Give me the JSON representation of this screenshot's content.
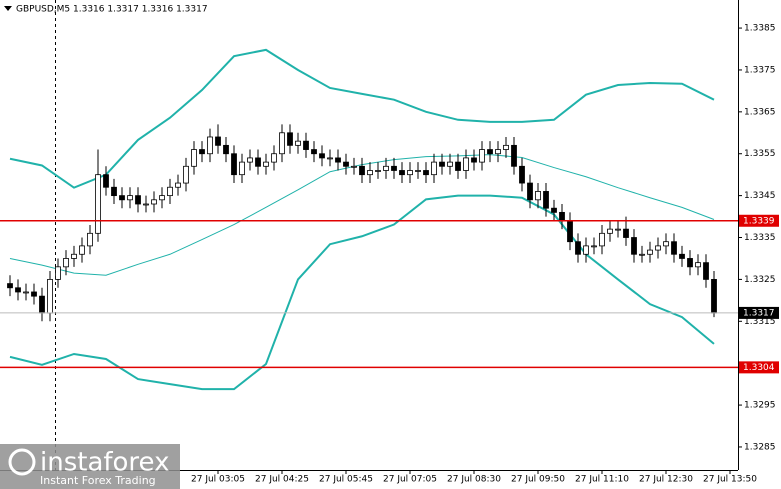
{
  "chart_data": {
    "type": "candlestick",
    "title": "GBPUSD,M5  1.3316 1.3317 1.3316 1.3317",
    "categories": [
      null,
      null,
      null,
      null,
      null,
      null,
      null,
      null,
      null,
      null,
      null,
      null,
      null,
      null,
      null,
      null,
      null,
      null,
      null,
      null,
      null,
      null,
      null,
      null,
      null,
      null,
      "27 Jul 03:05",
      null,
      null,
      null,
      null,
      null,
      null,
      null,
      "27 Jul 04:25",
      null,
      null,
      null,
      null,
      null,
      null,
      null,
      "27 Jul 05:45",
      null,
      null,
      null,
      null,
      null,
      null,
      null,
      "27 Jul 07:05",
      null,
      null,
      null,
      null,
      null,
      null,
      null,
      "27 Jul 08:30",
      null,
      null,
      null,
      null,
      null,
      null,
      null,
      "27 Jul 09:50",
      null,
      null,
      null,
      null,
      null,
      null,
      null,
      "27 Jul 11:10",
      null,
      null,
      null,
      null,
      null,
      null,
      null,
      "27 Jul 12:30",
      null,
      null,
      null,
      null,
      null,
      null,
      null,
      "27 Jul 13:50"
    ],
    "open": [
      1.3324,
      1.3323,
      1.3322,
      1.3322,
      1.3321,
      1.3317,
      1.3325,
      1.3328,
      1.333,
      1.3331,
      1.3333,
      1.3336,
      1.335,
      1.3347,
      1.3345,
      1.3344,
      1.3345,
      1.3343,
      1.3343,
      1.3344,
      1.3345,
      1.3347,
      1.3348,
      1.3352,
      1.3356,
      1.3355,
      1.3359,
      1.3357,
      1.3355,
      1.335,
      1.3353,
      1.3354,
      1.3352,
      1.3353,
      1.3355,
      1.336,
      1.3357,
      1.3358,
      1.3356,
      1.3355,
      1.3354,
      1.3354,
      1.3353,
      1.3352,
      1.3352,
      1.335,
      1.3351,
      1.3351,
      1.3352,
      1.3351,
      1.335,
      1.3351,
      1.3351,
      1.335,
      1.3353,
      1.3352,
      1.3353,
      1.3351,
      1.3354,
      1.3353,
      1.3356,
      1.3355,
      1.3356,
      1.3357,
      1.3352,
      1.3348,
      1.3344,
      1.3346,
      1.3342,
      1.3341,
      1.3339,
      1.3334,
      1.3331,
      1.3333,
      1.3333,
      1.3336,
      1.3337,
      1.3337,
      1.3335,
      1.3331,
      1.3331,
      1.3332,
      1.3333,
      1.3334,
      1.3331,
      1.333,
      1.3328,
      1.3329,
      1.3325,
      null,
      null
    ],
    "high": [
      1.3326,
      1.3325,
      1.3324,
      1.3324,
      1.3323,
      1.3327,
      1.333,
      1.3332,
      1.3333,
      1.3335,
      1.3338,
      1.3356,
      1.3352,
      1.3349,
      1.3347,
      1.3347,
      1.3347,
      1.3345,
      1.3346,
      1.3347,
      1.3349,
      1.335,
      1.3354,
      1.3358,
      1.3358,
      1.3361,
      1.3362,
      1.3359,
      1.3357,
      1.3355,
      1.3356,
      1.3356,
      1.3355,
      1.3357,
      1.3362,
      1.3362,
      1.336,
      1.336,
      1.3358,
      1.3357,
      1.3356,
      1.3356,
      1.3355,
      1.3354,
      1.3354,
      1.3353,
      1.3353,
      1.3354,
      1.3354,
      1.3353,
      1.3353,
      1.3353,
      1.3353,
      1.3355,
      1.3355,
      1.3355,
      1.3355,
      1.3356,
      1.3356,
      1.3358,
      1.3358,
      1.3358,
      1.3359,
      1.3359,
      1.3354,
      1.335,
      1.3348,
      1.3348,
      1.3344,
      1.3343,
      1.3341,
      1.3336,
      1.3335,
      1.3335,
      1.3338,
      1.3339,
      1.3339,
      1.334,
      1.3337,
      1.3333,
      1.3334,
      1.3335,
      1.3336,
      1.3336,
      1.3333,
      1.3332,
      1.3331,
      1.3331,
      1.3327,
      null,
      null
    ],
    "low": [
      1.3321,
      1.332,
      1.332,
      1.3319,
      1.3315,
      1.3315,
      1.3323,
      1.3326,
      1.3328,
      1.3329,
      1.3331,
      1.3334,
      1.3345,
      1.3343,
      1.3342,
      1.3342,
      1.3341,
      1.3341,
      1.3341,
      1.3342,
      1.3343,
      1.3345,
      1.3346,
      1.335,
      1.3353,
      1.3353,
      1.3355,
      1.3353,
      1.3348,
      1.3348,
      1.3351,
      1.335,
      1.335,
      1.3351,
      1.3353,
      1.3355,
      1.3355,
      1.3354,
      1.3353,
      1.3352,
      1.3352,
      1.3351,
      1.335,
      1.335,
      1.3348,
      1.3348,
      1.3349,
      1.3349,
      1.3349,
      1.3348,
      1.3348,
      1.3349,
      1.3348,
      1.3348,
      1.335,
      1.335,
      1.3349,
      1.3349,
      1.3351,
      1.3351,
      1.3353,
      1.3353,
      1.3354,
      1.335,
      1.3346,
      1.3342,
      1.3342,
      1.334,
      1.3339,
      1.3337,
      1.3332,
      1.3329,
      1.3329,
      1.3331,
      1.3331,
      1.3334,
      1.3335,
      1.3333,
      1.3329,
      1.3329,
      1.3329,
      1.333,
      1.3331,
      1.3329,
      1.3328,
      1.3326,
      1.3326,
      1.3323,
      1.3316,
      null,
      null
    ],
    "close": [
      1.3323,
      1.3322,
      1.3322,
      1.3321,
      1.3317,
      1.3325,
      1.3328,
      1.333,
      1.3331,
      1.3333,
      1.3336,
      1.335,
      1.3347,
      1.3345,
      1.3344,
      1.3345,
      1.3343,
      1.3343,
      1.3344,
      1.3345,
      1.3347,
      1.3348,
      1.3352,
      1.3356,
      1.3355,
      1.3359,
      1.3357,
      1.3355,
      1.335,
      1.3353,
      1.3354,
      1.3352,
      1.3353,
      1.3355,
      1.336,
      1.3357,
      1.3358,
      1.3356,
      1.3355,
      1.3354,
      1.3354,
      1.3353,
      1.3352,
      1.3352,
      1.335,
      1.3351,
      1.3351,
      1.3352,
      1.3351,
      1.335,
      1.3351,
      1.3351,
      1.335,
      1.3353,
      1.3352,
      1.3353,
      1.3351,
      1.3354,
      1.3353,
      1.3356,
      1.3355,
      1.3356,
      1.3357,
      1.3352,
      1.3348,
      1.3344,
      1.3346,
      1.3342,
      1.3341,
      1.3339,
      1.3334,
      1.3331,
      1.3333,
      1.3333,
      1.3336,
      1.3337,
      1.3337,
      1.3335,
      1.3331,
      1.3331,
      1.3332,
      1.3333,
      1.3334,
      1.3331,
      1.333,
      1.3328,
      1.3329,
      1.3325,
      1.3317,
      null,
      null
    ],
    "bands": [
      {
        "color": "#20b2aa",
        "x": [
          0,
          4,
          8,
          12,
          16,
          20,
          24,
          28,
          32,
          36,
          40,
          44,
          48,
          52,
          56,
          60,
          64,
          68,
          72,
          76,
          80,
          84,
          88
        ],
        "values": [
          1.33538,
          1.33522,
          1.33469,
          1.335,
          1.33583,
          1.33636,
          1.33702,
          1.33783,
          1.33798,
          1.3375,
          1.33707,
          1.33693,
          1.33679,
          1.3365,
          1.33631,
          1.33626,
          1.33626,
          1.33631,
          1.33691,
          1.33714,
          1.33719,
          1.33717,
          1.33679
        ]
      },
      {
        "color": "#20b2aa",
        "x": [
          0,
          4,
          8,
          12,
          16,
          20,
          24,
          28,
          32,
          36,
          40,
          44,
          48,
          52,
          56,
          60,
          64,
          68,
          72,
          76,
          80,
          84,
          88
        ],
        "values": [
          1.333,
          1.33284,
          1.33265,
          1.3326,
          1.33286,
          1.3331,
          1.33345,
          1.33381,
          1.33422,
          1.33464,
          1.33507,
          1.33524,
          1.33536,
          1.33543,
          1.33545,
          1.33548,
          1.33541,
          1.33517,
          1.33495,
          1.33469,
          1.33445,
          1.33422,
          1.33393
        ]
      },
      {
        "color": "#20b2aa",
        "x": [
          0,
          4,
          8,
          12,
          16,
          20,
          24,
          28,
          32,
          36,
          40,
          44,
          48,
          52,
          56,
          60,
          64,
          68,
          72,
          76,
          80,
          84,
          88
        ],
        "values": [
          1.33065,
          1.33046,
          1.33072,
          1.3306,
          1.33012,
          1.33,
          1.32988,
          1.32988,
          1.33048,
          1.3325,
          1.33334,
          1.33353,
          1.33381,
          1.33441,
          1.3345,
          1.3345,
          1.33445,
          1.33405,
          1.3331,
          1.3325,
          1.33191,
          1.3316,
          1.33096
        ]
      }
    ],
    "hlines": [
      {
        "value": 1.3339,
        "color": "#e00000"
      },
      {
        "value": 1.3304,
        "color": "#e00000"
      }
    ],
    "current_price": 1.3317,
    "ylim": [
      1.32795,
      1.33917
    ],
    "yticks": [
      1.3285,
      1.3295,
      1.3315,
      1.3325,
      1.3335,
      1.3345,
      1.3355,
      1.3365,
      1.3375,
      1.3385
    ],
    "grid": false
  },
  "logo": {
    "name": "instaforex",
    "tagline": "Instant Forex Trading"
  }
}
